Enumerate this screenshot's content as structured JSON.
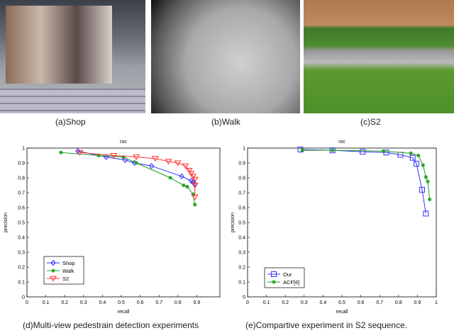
{
  "captions": {
    "a": "(a)Shop",
    "b": "(b)Walk",
    "c": "(c)S2",
    "d": "(d)Multi-view pedestrain detection experiments",
    "e": "(e)Compartive experiment in S2 sequence."
  },
  "chart_data": [
    {
      "type": "line",
      "title": "roc",
      "xlabel": "recall",
      "ylabel": "precision",
      "xlim": [
        0,
        1
      ],
      "ylim": [
        0,
        1
      ],
      "xticks": [
        "0",
        "0.1",
        "0.2",
        "0.3",
        "0.4",
        "0.5",
        "0.6",
        "0.7",
        "0.8",
        "0.9"
      ],
      "yticks": [
        "0",
        "0.1",
        "0.2",
        "0.3",
        "0.4",
        "0.5",
        "0.6",
        "0.7",
        "0.8",
        "0.9",
        "1"
      ],
      "grid": false,
      "legend": "bottom-left",
      "series": [
        {
          "name": "Shop",
          "color": "#3030ff",
          "marker": "diamond",
          "x": [
            0.27,
            0.42,
            0.52,
            0.57,
            0.66,
            0.82,
            0.87,
            0.88,
            0.89
          ],
          "y": [
            0.98,
            0.94,
            0.92,
            0.9,
            0.88,
            0.81,
            0.78,
            0.77,
            0.76
          ]
        },
        {
          "name": "Walk",
          "color": "#20a020",
          "marker": "star",
          "x": [
            0.18,
            0.38,
            0.51,
            0.58,
            0.76,
            0.83,
            0.85,
            0.88,
            0.89
          ],
          "y": [
            0.97,
            0.95,
            0.94,
            0.9,
            0.8,
            0.75,
            0.74,
            0.69,
            0.62
          ]
        },
        {
          "name": "S2",
          "color": "#ff3030",
          "marker": "triangle-down",
          "x": [
            0.28,
            0.46,
            0.58,
            0.68,
            0.75,
            0.8,
            0.84,
            0.86,
            0.87,
            0.88,
            0.89,
            0.89,
            0.89
          ],
          "y": [
            0.97,
            0.95,
            0.94,
            0.93,
            0.91,
            0.9,
            0.88,
            0.85,
            0.83,
            0.81,
            0.79,
            0.75,
            0.67
          ]
        }
      ]
    },
    {
      "type": "line",
      "title": "roc",
      "xlabel": "recall",
      "ylabel": "precision",
      "xlim": [
        0,
        1
      ],
      "ylim": [
        0,
        1
      ],
      "xticks": [
        "0",
        "0.1",
        "0.2",
        "0.3",
        "0.4",
        "0.5",
        "0.6",
        "0.7",
        "0.8",
        "0.9",
        "1"
      ],
      "yticks": [
        "0",
        "0.1",
        "0.2",
        "0.3",
        "0.4",
        "0.5",
        "0.6",
        "0.7",
        "0.8",
        "0.9",
        "1"
      ],
      "grid": false,
      "legend": "bottom-left",
      "series": [
        {
          "name": "Our",
          "color": "#3030ff",
          "marker": "square",
          "x": [
            0.28,
            0.45,
            0.61,
            0.735,
            0.81,
            0.875,
            0.895,
            0.925,
            0.945
          ],
          "y": [
            0.99,
            0.985,
            0.975,
            0.97,
            0.955,
            0.935,
            0.895,
            0.72,
            0.56
          ]
        },
        {
          "name": "ACF[6]",
          "color": "#20a020",
          "marker": "star",
          "x": [
            0.29,
            0.45,
            0.72,
            0.865,
            0.905,
            0.93,
            0.945,
            0.955,
            0.965
          ],
          "y": [
            0.985,
            0.985,
            0.98,
            0.965,
            0.95,
            0.885,
            0.805,
            0.775,
            0.655
          ]
        }
      ]
    }
  ]
}
